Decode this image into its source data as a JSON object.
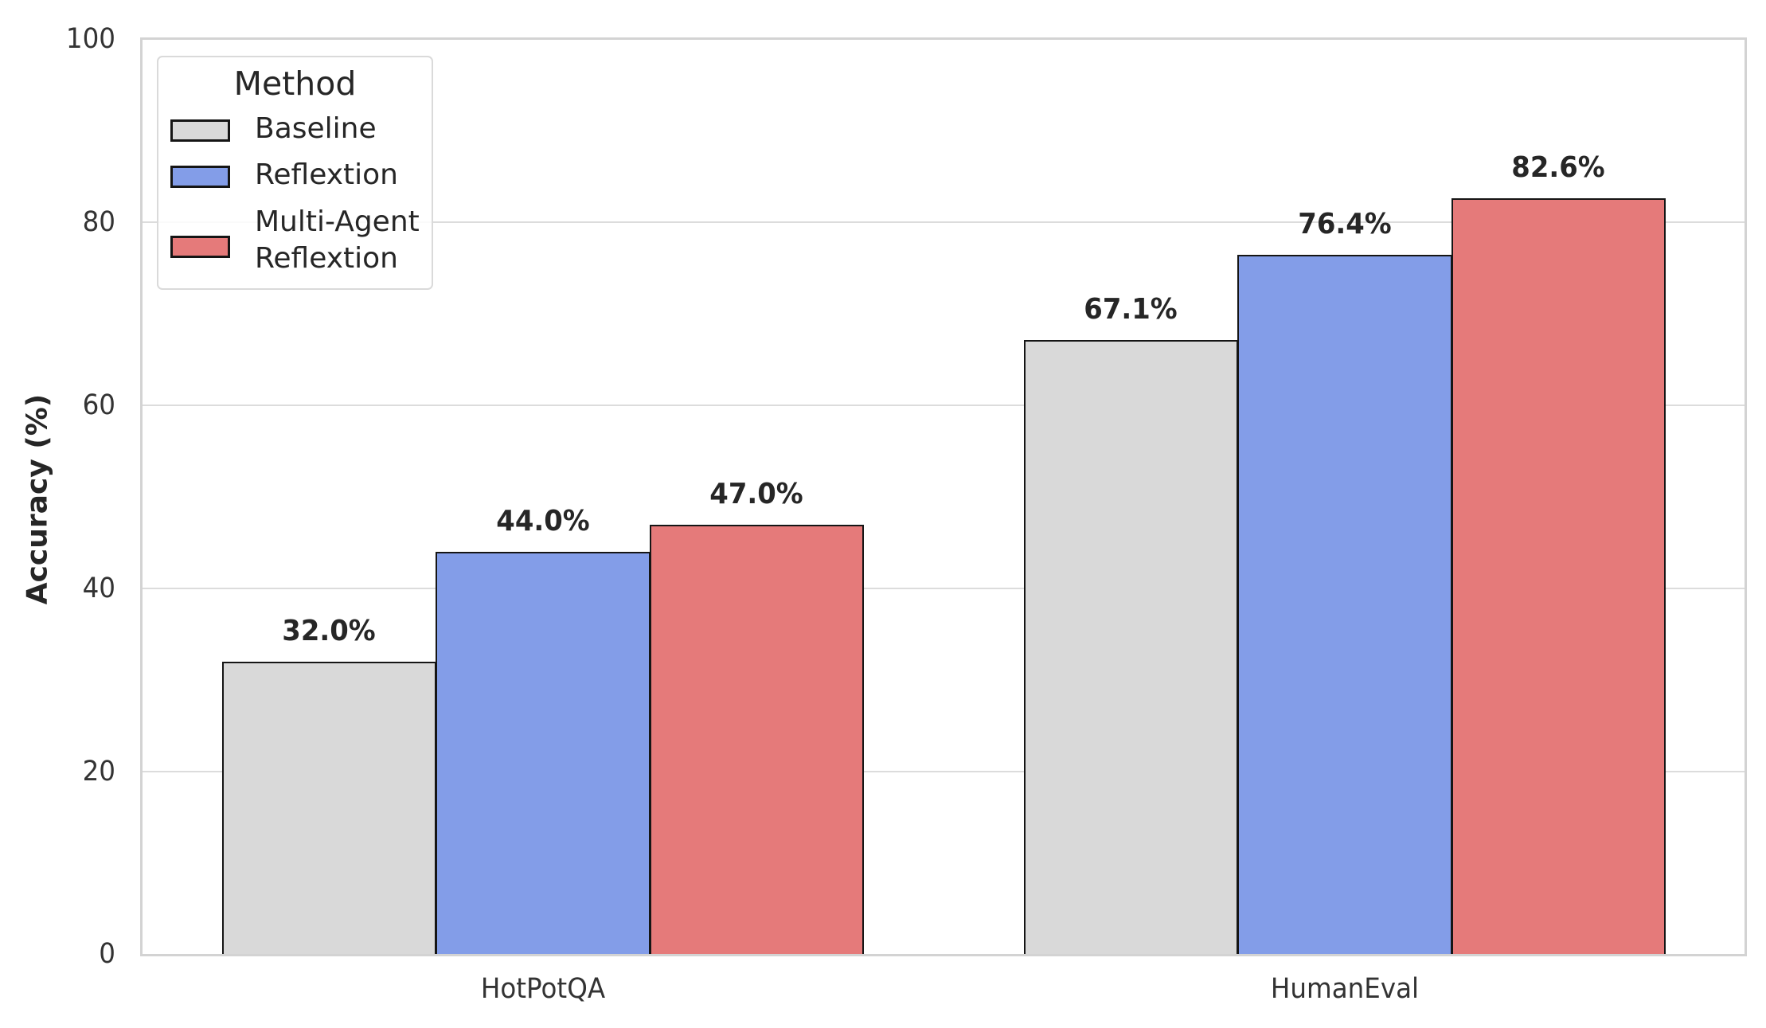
{
  "chart_data": {
    "type": "bar",
    "title": "",
    "xlabel": "",
    "ylabel": "Accuracy (%)",
    "ylim": [
      0,
      100
    ],
    "yticks": [
      0,
      20,
      40,
      60,
      80,
      100
    ],
    "categories": [
      "HotPotQA",
      "HumanEval"
    ],
    "series": [
      {
        "name": "Baseline",
        "color": "#d9d9d9",
        "values": [
          32.0,
          67.1
        ],
        "labels": [
          "32.0%",
          "67.1%"
        ]
      },
      {
        "name": "Reflextion",
        "color": "#839de8",
        "values": [
          44.0,
          76.4
        ],
        "labels": [
          "44.0%",
          "76.4%"
        ]
      },
      {
        "name": "Multi-Agent\nReflextion",
        "color": "#e57a7a",
        "values": [
          47.0,
          82.6
        ],
        "labels": [
          "47.0%",
          "82.6%"
        ]
      }
    ],
    "grid": {
      "y": true,
      "x": false
    },
    "legend": {
      "title": "Method",
      "position": "upper left",
      "entries": [
        "Baseline",
        "Reflextion",
        "Multi-Agent Reflextion"
      ]
    }
  },
  "axes": {
    "ylabel": "Accuracy (%)",
    "yticks": [
      "0",
      "20",
      "40",
      "60",
      "80",
      "100"
    ],
    "xticks": [
      "HotPotQA",
      "HumanEval"
    ]
  },
  "legend": {
    "title": "Method",
    "items": [
      {
        "label_line1": "Baseline",
        "label_line2": "",
        "color": "#d9d9d9"
      },
      {
        "label_line1": "Reflextion",
        "label_line2": "",
        "color": "#839de8"
      },
      {
        "label_line1": "Multi-Agent",
        "label_line2": "Reflextion",
        "color": "#e57a7a"
      }
    ]
  },
  "bar_labels": {
    "hotpotqa": [
      "32.0%",
      "44.0%",
      "47.0%"
    ],
    "humaneval": [
      "67.1%",
      "76.4%",
      "82.6%"
    ]
  }
}
